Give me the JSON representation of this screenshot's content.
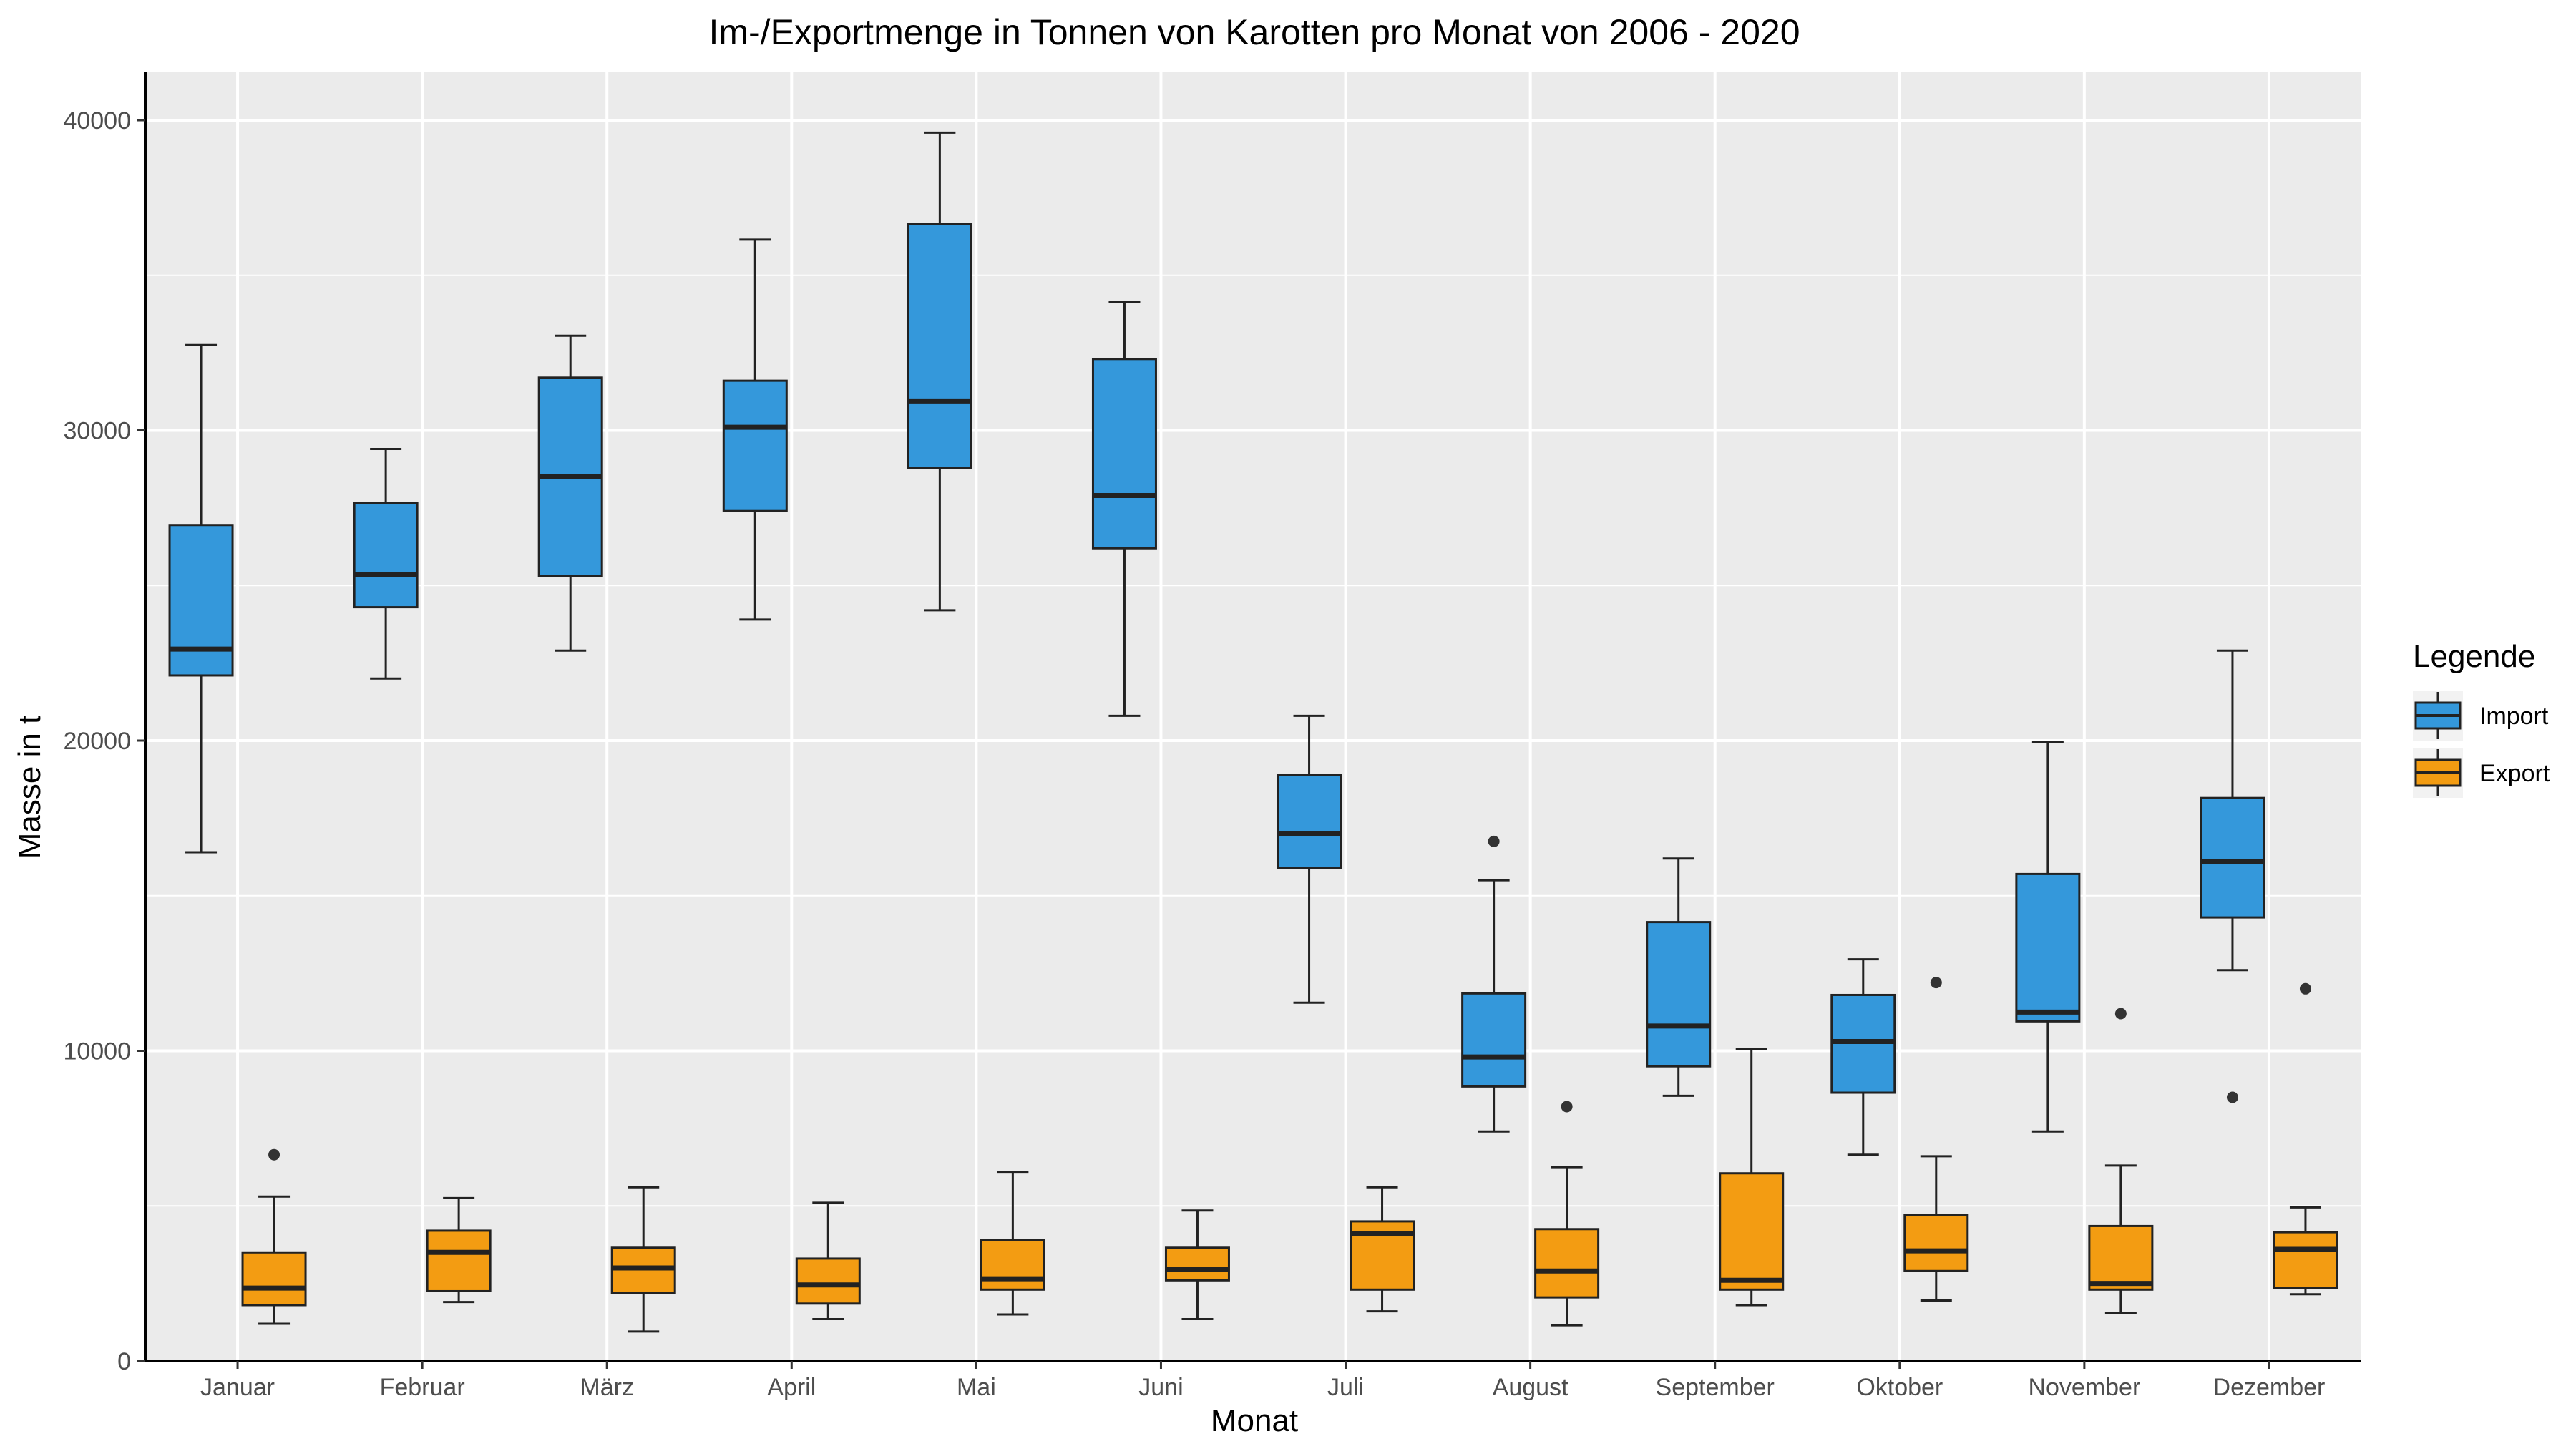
{
  "chart_data": {
    "type": "boxplot",
    "title": "Im-/Exportmenge in Tonnen von Karotten pro Monat von 2006 - 2020",
    "xlabel": "Monat",
    "ylabel": "Masse in t",
    "ylim": [
      0,
      41600
    ],
    "yticks": [
      0,
      10000,
      20000,
      30000,
      40000
    ],
    "grid": true,
    "legend": {
      "title": "Legende",
      "position": "right"
    },
    "categories": [
      "Januar",
      "Februar",
      "März",
      "April",
      "Mai",
      "Juni",
      "Juli",
      "August",
      "September",
      "Oktober",
      "November",
      "Dezember"
    ],
    "series": [
      {
        "name": "Import",
        "color": "#3498db",
        "boxes": [
          {
            "min": 16400,
            "q1": 22100,
            "median": 22950,
            "q3": 26950,
            "max": 32750,
            "outliers": []
          },
          {
            "min": 22000,
            "q1": 24300,
            "median": 25350,
            "q3": 27650,
            "max": 29400,
            "outliers": []
          },
          {
            "min": 22900,
            "q1": 25300,
            "median": 28500,
            "q3": 31700,
            "max": 33050,
            "outliers": []
          },
          {
            "min": 23900,
            "q1": 27400,
            "median": 30100,
            "q3": 31600,
            "max": 36150,
            "outliers": []
          },
          {
            "min": 24200,
            "q1": 28800,
            "median": 30950,
            "q3": 36650,
            "max": 39600,
            "outliers": []
          },
          {
            "min": 20800,
            "q1": 26200,
            "median": 27900,
            "q3": 32300,
            "max": 34150,
            "outliers": []
          },
          {
            "min": 11550,
            "q1": 15900,
            "median": 17000,
            "q3": 18900,
            "max": 20800,
            "outliers": []
          },
          {
            "min": 7400,
            "q1": 8850,
            "median": 9800,
            "q3": 11850,
            "max": 15500,
            "outliers": [
              16750
            ]
          },
          {
            "min": 8550,
            "q1": 9500,
            "median": 10800,
            "q3": 14150,
            "max": 16200,
            "outliers": []
          },
          {
            "min": 6650,
            "q1": 8650,
            "median": 10300,
            "q3": 11800,
            "max": 12950,
            "outliers": []
          },
          {
            "min": 7400,
            "q1": 10950,
            "median": 11250,
            "q3": 15700,
            "max": 19950,
            "outliers": []
          },
          {
            "min": 12600,
            "q1": 14300,
            "median": 16100,
            "q3": 18150,
            "max": 22900,
            "outliers": [
              8500
            ]
          }
        ]
      },
      {
        "name": "Export",
        "color": "#f39c12",
        "boxes": [
          {
            "min": 1200,
            "q1": 1800,
            "median": 2350,
            "q3": 3500,
            "max": 5300,
            "outliers": [
              6650
            ]
          },
          {
            "min": 1900,
            "q1": 2250,
            "median": 3500,
            "q3": 4200,
            "max": 5250,
            "outliers": []
          },
          {
            "min": 950,
            "q1": 2200,
            "median": 3000,
            "q3": 3650,
            "max": 5600,
            "outliers": []
          },
          {
            "min": 1350,
            "q1": 1850,
            "median": 2450,
            "q3": 3300,
            "max": 5100,
            "outliers": []
          },
          {
            "min": 1500,
            "q1": 2300,
            "median": 2650,
            "q3": 3900,
            "max": 6100,
            "outliers": []
          },
          {
            "min": 1350,
            "q1": 2600,
            "median": 2950,
            "q3": 3650,
            "max": 4850,
            "outliers": []
          },
          {
            "min": 1600,
            "q1": 2300,
            "median": 4100,
            "q3": 4500,
            "max": 5600,
            "outliers": []
          },
          {
            "min": 1150,
            "q1": 2050,
            "median": 2900,
            "q3": 4250,
            "max": 6250,
            "outliers": [
              8200
            ]
          },
          {
            "min": 1800,
            "q1": 2300,
            "median": 2600,
            "q3": 6050,
            "max": 10050,
            "outliers": []
          },
          {
            "min": 1950,
            "q1": 2900,
            "median": 3550,
            "q3": 4700,
            "max": 6600,
            "outliers": [
              12200
            ]
          },
          {
            "min": 1550,
            "q1": 2300,
            "median": 2500,
            "q3": 4350,
            "max": 6300,
            "outliers": [
              11200
            ]
          },
          {
            "min": 2150,
            "q1": 2350,
            "median": 3600,
            "q3": 4150,
            "max": 4950,
            "outliers": [
              12000
            ]
          }
        ]
      }
    ]
  }
}
